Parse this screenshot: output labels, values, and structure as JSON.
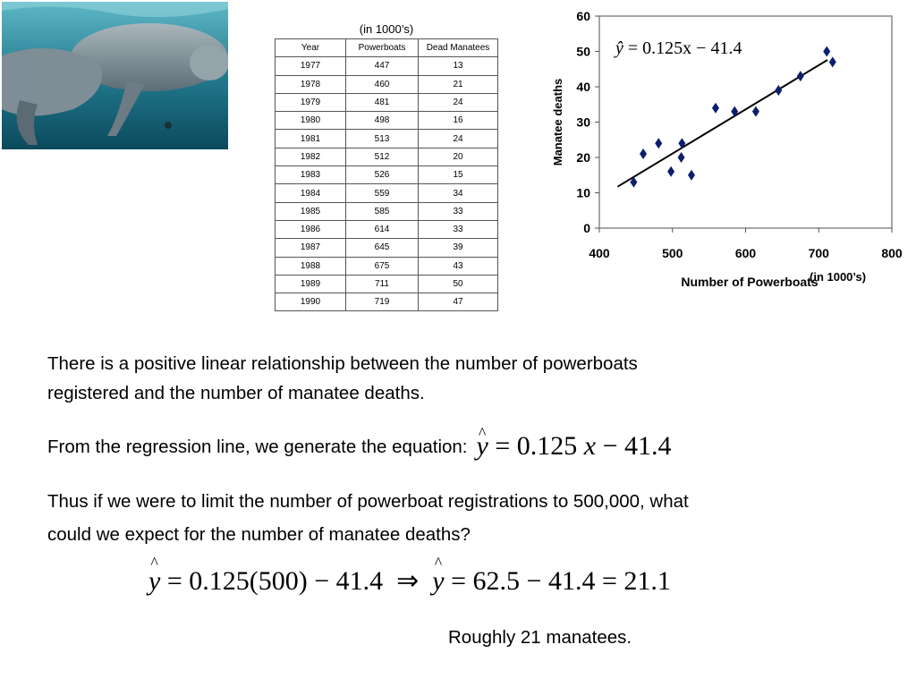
{
  "photo": {
    "icon": "manatee-photo",
    "colors": {
      "water_top": "#4aa3b4",
      "water_bottom": "#0b4a5c",
      "manatee": "#8c9ba3"
    }
  },
  "table": {
    "caption": "(in 1000’s)",
    "headers": [
      "Year",
      "Powerboats",
      "Dead Manatees"
    ],
    "rows": [
      [
        "1977",
        "447",
        "13"
      ],
      [
        "1978",
        "460",
        "21"
      ],
      [
        "1979",
        "481",
        "24"
      ],
      [
        "1980",
        "498",
        "16"
      ],
      [
        "1981",
        "513",
        "24"
      ],
      [
        "1982",
        "512",
        "20"
      ],
      [
        "1983",
        "526",
        "15"
      ],
      [
        "1984",
        "559",
        "34"
      ],
      [
        "1985",
        "585",
        "33"
      ],
      [
        "1986",
        "614",
        "33"
      ],
      [
        "1987",
        "645",
        "39"
      ],
      [
        "1988",
        "675",
        "43"
      ],
      [
        "1989",
        "711",
        "50"
      ],
      [
        "1990",
        "719",
        "47"
      ]
    ]
  },
  "chart_data": {
    "type": "scatter",
    "title": "",
    "xlabel": "Number of Powerboats",
    "xlabel_note": "(in 1000’s)",
    "ylabel": "Manatee deaths",
    "xlim": [
      400,
      800
    ],
    "ylim": [
      0,
      60
    ],
    "xticks": [
      400,
      500,
      600,
      700,
      800
    ],
    "yticks": [
      0,
      10,
      20,
      30,
      40,
      50,
      60
    ],
    "grid": false,
    "points": [
      [
        447,
        13
      ],
      [
        460,
        21
      ],
      [
        481,
        24
      ],
      [
        498,
        16
      ],
      [
        513,
        24
      ],
      [
        512,
        20
      ],
      [
        526,
        15
      ],
      [
        559,
        34
      ],
      [
        585,
        33
      ],
      [
        614,
        33
      ],
      [
        645,
        39
      ],
      [
        675,
        43
      ],
      [
        711,
        50
      ],
      [
        719,
        47
      ]
    ],
    "regression": {
      "slope": 0.125,
      "intercept": -41.4,
      "x_range": [
        425,
        712
      ]
    },
    "equation_label": {
      "lhs": "ŷ",
      "rhs": "= 0.125x − 41.4"
    },
    "marker_color": "#0b1f6e",
    "line_color": "#000000"
  },
  "text": {
    "paragraph1_line1": "There is a positive linear relationship between the number of powerboats",
    "paragraph1_line2": "registered and the number of manatee deaths.",
    "paragraph2": "From the regression line, we generate the equation:",
    "eq_y": "y",
    "eq_rest": " = 0.125 ",
    "eq_x": "x",
    "eq_tail": " − 41.4",
    "paragraph3_line1": "Thus if we were to limit the number of powerboat registrations to 500,000, what",
    "paragraph3_line2": "could we expect for the number of manatee deaths?",
    "calc_y1": "y",
    "calc_part1": " = 0.125(500) − 41.4  ⇒  ",
    "calc_y2": "y",
    "calc_part2": " = 62.5 − 41.4 = 21.1",
    "conclusion": "Roughly 21 manatees."
  }
}
